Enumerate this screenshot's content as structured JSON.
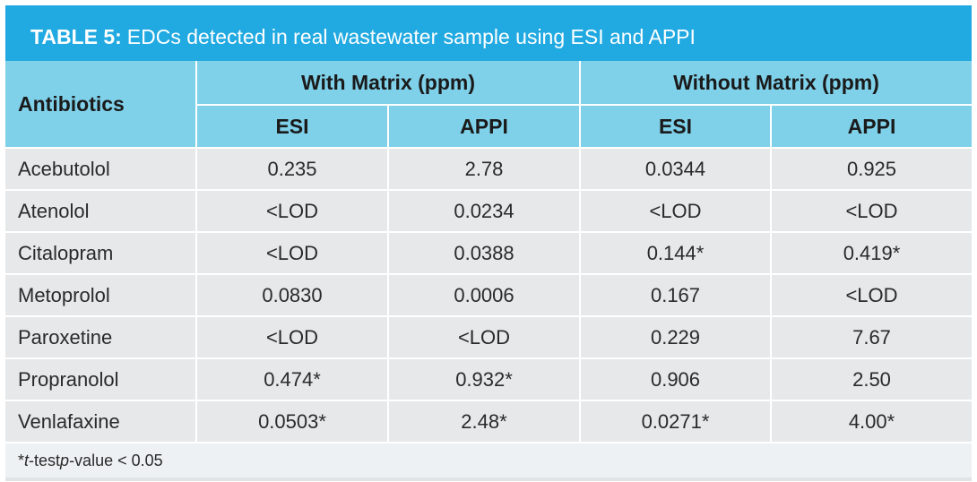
{
  "title": {
    "label": "TABLE 5:",
    "text": "EDCs detected in real wastewater sample using ESI and APPI"
  },
  "header": {
    "row_label": "Antibiotics",
    "groups": [
      "With Matrix (ppm)",
      "Without Matrix (ppm)"
    ],
    "subs": [
      "ESI",
      "APPI",
      "ESI",
      "APPI"
    ]
  },
  "rows": [
    {
      "name": "Acebutolol",
      "values": [
        "0.235",
        "2.78",
        "0.0344",
        "0.925"
      ]
    },
    {
      "name": "Atenolol",
      "values": [
        "<LOD",
        "0.0234",
        "<LOD",
        "<LOD"
      ]
    },
    {
      "name": "Citalopram",
      "values": [
        "<LOD",
        "0.0388",
        "0.144*",
        "0.419*"
      ]
    },
    {
      "name": "Metoprolol",
      "values": [
        "0.0830",
        "0.0006",
        "0.167",
        "<LOD"
      ]
    },
    {
      "name": "Paroxetine",
      "values": [
        "<LOD",
        "<LOD",
        "0.229",
        "7.67"
      ]
    },
    {
      "name": "Propranolol",
      "values": [
        "0.474*",
        "0.932*",
        "0.906",
        "2.50"
      ]
    },
    {
      "name": "Venlafaxine",
      "values": [
        "0.0503*",
        "2.48*",
        "0.0271*",
        "4.00*"
      ]
    }
  ],
  "footnote": {
    "star": "*",
    "t": "t",
    "test": "-test ",
    "p": "p",
    "rest": "-value < 0.05"
  },
  "colors": {
    "title_bar": "#21a9e1",
    "header": "#7fd0e9",
    "body": "#e6e8ea"
  }
}
